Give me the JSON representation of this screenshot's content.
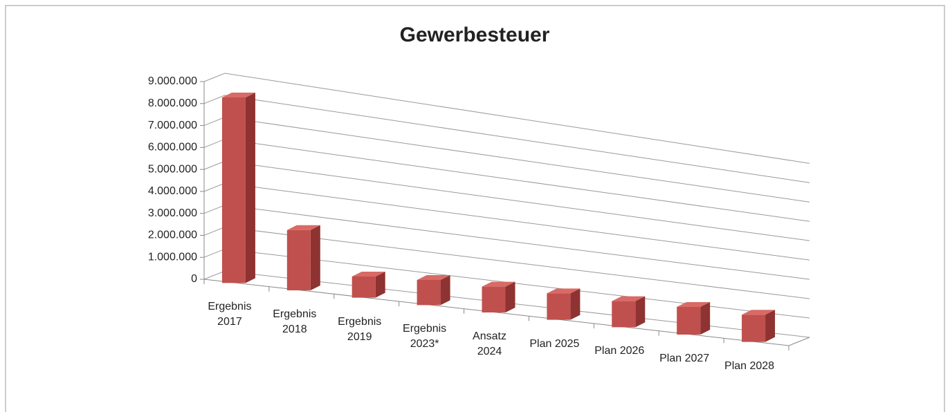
{
  "chart_data": {
    "type": "bar3d",
    "title": "Gewerbesteuer",
    "categories": [
      "Ergebnis\n2017",
      "Ergebnis\n2018",
      "Ergebnis\n2019",
      "Ergebnis\n2023*",
      "Ansatz\n2024",
      "Plan 2025",
      "Plan 2026",
      "Plan 2027",
      "Plan 2028"
    ],
    "values": [
      8500000,
      2800000,
      1000000,
      1200000,
      1250000,
      1300000,
      1300000,
      1400000,
      1400000
    ],
    "color": "#c0504d",
    "ylim": [
      0,
      9000000
    ],
    "yticks": [
      0,
      {
        "value": 1000000,
        "label": "1.000.000"
      },
      {
        "value": 2000000,
        "label": "2.000.000"
      },
      {
        "value": 3000000,
        "label": "3.000.000"
      },
      {
        "value": 4000000,
        "label": "4.000.000"
      },
      {
        "value": 5000000,
        "label": "5.000.000"
      },
      {
        "value": 6000000,
        "label": "6.000.000"
      },
      {
        "value": 7000000,
        "label": "7.000.000"
      },
      {
        "value": 8000000,
        "label": "8.000.000"
      },
      {
        "value": 9000000,
        "label": "9.000.000"
      }
    ],
    "grid": true
  }
}
